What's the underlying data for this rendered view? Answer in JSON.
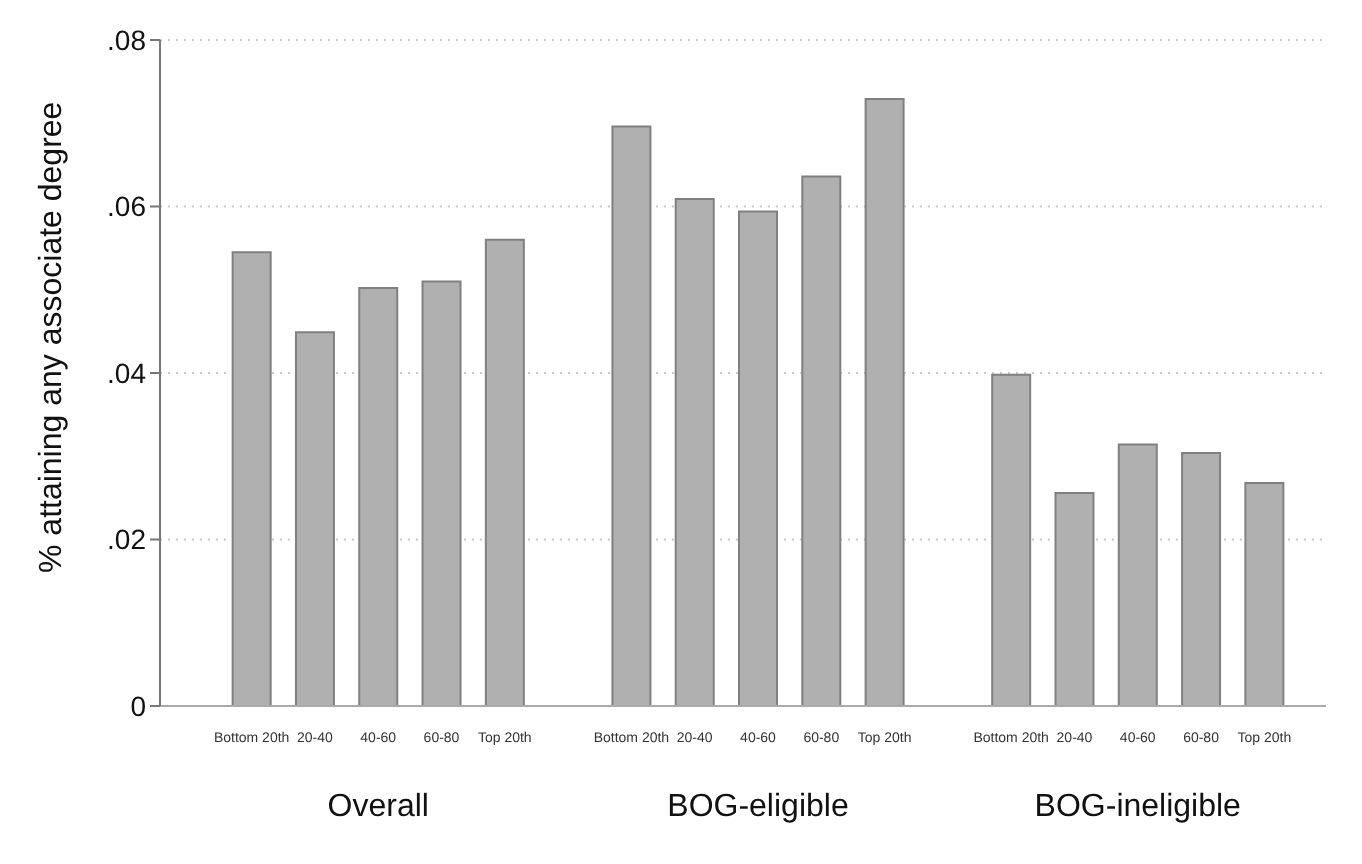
{
  "chart_data": {
    "type": "bar",
    "ylabel": "% attaining any associate degree",
    "categories": [
      "Bottom 20th",
      "20-40",
      "40-60",
      "60-80",
      "Top 20th",
      "Bottom 20th",
      "20-40",
      "40-60",
      "60-80",
      "Top 20th",
      "Bottom 20th",
      "20-40",
      "40-60",
      "60-80",
      "Top 20th"
    ],
    "values": [
      0.0545,
      0.0449,
      0.0502,
      0.051,
      0.056,
      0.0696,
      0.0609,
      0.0594,
      0.0636,
      0.0729,
      0.0398,
      0.0256,
      0.0314,
      0.0304,
      0.0268
    ],
    "color": "#b0b0b0",
    "ylim": [
      0,
      0.08
    ],
    "yticks": [
      {
        "value": 0,
        "label": "0"
      },
      {
        "value": 0.02,
        "label": ".02"
      },
      {
        "value": 0.04,
        "label": ".04"
      },
      {
        "value": 0.06,
        "label": ".06"
      },
      {
        "value": 0.08,
        "label": ".08"
      }
    ],
    "grid": "y",
    "annotations": [
      "Overall",
      "BOG-eligible",
      "BOG-ineligible"
    ]
  }
}
